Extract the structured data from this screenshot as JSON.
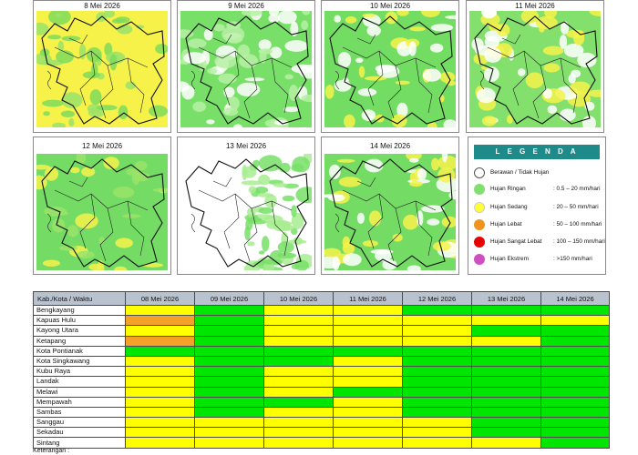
{
  "panels": [
    {
      "date": "8 Mei 2026",
      "pattern": "mostly-yellow"
    },
    {
      "date": "9 Mei 2026",
      "pattern": "green-white-north"
    },
    {
      "date": "10 Mei 2026",
      "pattern": "green-mixed"
    },
    {
      "date": "11 Mei 2026",
      "pattern": "yellow-west"
    },
    {
      "date": "12 Mei 2026",
      "pattern": "green-yellow-coast"
    },
    {
      "date": "13 Mei 2026",
      "pattern": "white-west-green-east"
    },
    {
      "date": "14 Mei 2026",
      "pattern": "green-white-east"
    }
  ],
  "legend": {
    "title": "L E G E N D A",
    "items": [
      {
        "label": "Berawan / Tidak Hujan",
        "range": "",
        "color": "#ffffff"
      },
      {
        "label": "Hujan Ringan",
        "range": ": 0.5 – 20 mm/hari",
        "color": "#7fe070"
      },
      {
        "label": "Hujan Sedang",
        "range": ": 20 – 50 mm/hari",
        "color": "#ffff33"
      },
      {
        "label": "Hujan Lebat",
        "range": ": 50 – 100 mm/hari",
        "color": "#f0921e"
      },
      {
        "label": "Hujan Sangat Lebat",
        "range": ": 100 – 150 mm/hari",
        "color": "#e60000"
      },
      {
        "label": "Hujan Ekstrem",
        "range": ": >150 mm/hari",
        "color": "#d04fc0"
      }
    ]
  },
  "table": {
    "header_region": "Kab./Kota / Waktu",
    "dates": [
      "08 Mei 2026",
      "09 Mei 2026",
      "10 Mei 2026",
      "11 Mei 2026",
      "12 Mei 2026",
      "13 Mei 2026",
      "14 Mei 2026"
    ],
    "rows": [
      {
        "name": "Bengkayang",
        "cells": [
          "yellow",
          "green",
          "yellow",
          "yellow",
          "green",
          "green",
          "green"
        ]
      },
      {
        "name": "Kapuas Hulu",
        "cells": [
          "orange",
          "green",
          "yellow",
          "yellow",
          "yellow",
          "yellow",
          "yellow"
        ]
      },
      {
        "name": "Kayong Utara",
        "cells": [
          "yellow",
          "green",
          "yellow",
          "yellow",
          "yellow",
          "green",
          "green"
        ]
      },
      {
        "name": "Ketapang",
        "cells": [
          "orange",
          "green",
          "yellow",
          "yellow",
          "yellow",
          "yellow",
          "green"
        ]
      },
      {
        "name": "Kota Pontianak",
        "cells": [
          "green",
          "green",
          "green",
          "green",
          "green",
          "green",
          "green"
        ]
      },
      {
        "name": "Kota Singkawang",
        "cells": [
          "yellow",
          "green",
          "green",
          "yellow",
          "green",
          "green",
          "green"
        ]
      },
      {
        "name": "Kubu Raya",
        "cells": [
          "yellow",
          "green",
          "yellow",
          "yellow",
          "green",
          "green",
          "green"
        ]
      },
      {
        "name": "Landak",
        "cells": [
          "yellow",
          "green",
          "yellow",
          "yellow",
          "green",
          "green",
          "green"
        ]
      },
      {
        "name": "Melawi",
        "cells": [
          "yellow",
          "green",
          "yellow",
          "green",
          "green",
          "green",
          "green"
        ]
      },
      {
        "name": "Mempawah",
        "cells": [
          "yellow",
          "green",
          "green",
          "yellow",
          "green",
          "green",
          "green"
        ]
      },
      {
        "name": "Sambas",
        "cells": [
          "yellow",
          "green",
          "yellow",
          "yellow",
          "green",
          "green",
          "green"
        ]
      },
      {
        "name": "Sanggau",
        "cells": [
          "yellow",
          "yellow",
          "yellow",
          "yellow",
          "yellow",
          "green",
          "green"
        ]
      },
      {
        "name": "Sekadau",
        "cells": [
          "yellow",
          "yellow",
          "yellow",
          "yellow",
          "yellow",
          "green",
          "green"
        ]
      },
      {
        "name": "Sintang",
        "cells": [
          "yellow",
          "yellow",
          "yellow",
          "yellow",
          "yellow",
          "yellow",
          "green"
        ]
      }
    ],
    "footnote": "Keterangan :"
  },
  "colors": {
    "yellow": "#ffff00",
    "green": "#00e600",
    "orange": "#f4a12a",
    "header_bg": "#b9c3d0",
    "legend_header": "#1f8a8a"
  }
}
